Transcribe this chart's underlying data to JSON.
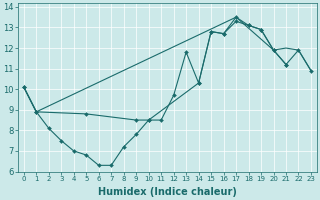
{
  "bg_color": "#cce9e9",
  "line_color": "#1a6b6b",
  "xlabel": "Humidex (Indice chaleur)",
  "xlim": [
    -0.5,
    23.5
  ],
  "ylim": [
    6,
    14.2
  ],
  "xticks": [
    0,
    1,
    2,
    3,
    4,
    5,
    6,
    7,
    8,
    9,
    10,
    11,
    12,
    13,
    14,
    15,
    16,
    17,
    18,
    19,
    20,
    21,
    22,
    23
  ],
  "yticks": [
    6,
    7,
    8,
    9,
    10,
    11,
    12,
    13,
    14
  ],
  "s1x": [
    0,
    1,
    2,
    3,
    4,
    5,
    6,
    7,
    8,
    9,
    10,
    11,
    12,
    13,
    14,
    15,
    16,
    17,
    18,
    19,
    20,
    21
  ],
  "s1y": [
    10.1,
    8.9,
    8.1,
    7.5,
    7.0,
    6.8,
    6.3,
    6.3,
    7.2,
    7.8,
    8.5,
    8.5,
    9.7,
    11.8,
    10.3,
    12.8,
    12.7,
    13.3,
    13.1,
    12.9,
    11.9,
    11.2
  ],
  "s2x": [
    0,
    1,
    5,
    9,
    10,
    14,
    15,
    16,
    17,
    18,
    19,
    20,
    21,
    22,
    23
  ],
  "s2y": [
    10.1,
    8.9,
    8.8,
    8.5,
    8.5,
    10.3,
    12.8,
    12.7,
    13.5,
    13.1,
    12.9,
    11.9,
    11.2,
    11.9,
    10.9
  ],
  "s3x": [
    0,
    1,
    17,
    20,
    21,
    22,
    23
  ],
  "s3y": [
    10.1,
    8.9,
    13.5,
    11.9,
    12.0,
    11.9,
    10.9
  ]
}
